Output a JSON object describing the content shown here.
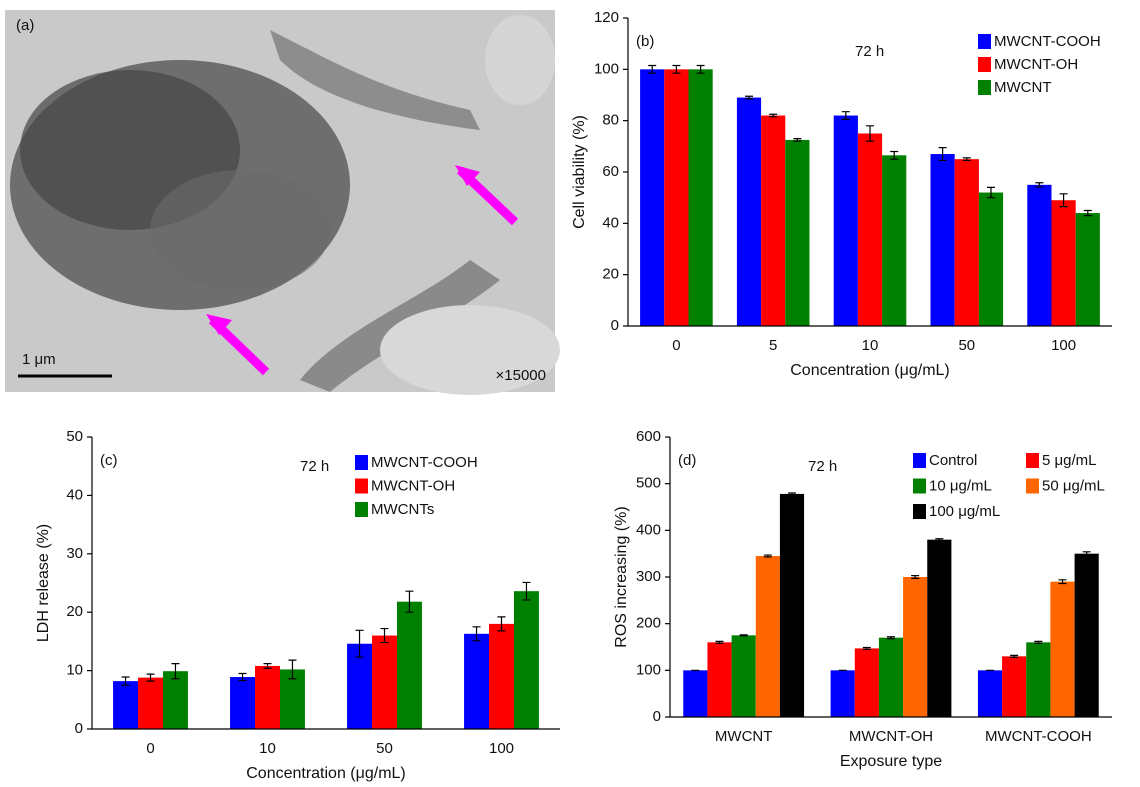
{
  "image": {
    "panel_label": "(a)",
    "scale_bar": "1 μm",
    "magnification": "×15000"
  },
  "chart_data": [
    {
      "type": "bar",
      "panel_label": "(b)",
      "annotation": "72 h",
      "x_label": "Concentration (μg/mL)",
      "y_label": "Cell viability (%)",
      "categories": [
        "0",
        "5",
        "10",
        "50",
        "100"
      ],
      "series": [
        {
          "name": "MWCNT-COOH",
          "color": "#0000ff",
          "values": [
            100,
            89,
            82,
            67,
            55
          ],
          "errors": [
            1.5,
            0.5,
            1.5,
            2.5,
            0.8
          ]
        },
        {
          "name": "MWCNT-OH",
          "color": "#ff0000",
          "values": [
            100,
            82,
            75,
            65,
            49
          ],
          "errors": [
            1.5,
            0.5,
            3,
            0.5,
            2.5
          ]
        },
        {
          "name": "MWCNT",
          "color": "#008000",
          "values": [
            100,
            72.5,
            66.5,
            52,
            44
          ],
          "errors": [
            1.5,
            0.5,
            1.5,
            2,
            1
          ]
        }
      ],
      "ylim": [
        0,
        120
      ],
      "yticks": [
        0,
        20,
        40,
        60,
        80,
        100,
        120
      ],
      "legend": "upper right"
    },
    {
      "type": "bar",
      "panel_label": "(c)",
      "annotation": "72 h",
      "x_label": "Concentration (μg/mL)",
      "y_label": "LDH release (%)",
      "categories": [
        "0",
        "10",
        "50",
        "100"
      ],
      "series": [
        {
          "name": "MWCNT-COOH",
          "color": "#0000ff",
          "values": [
            8.2,
            8.9,
            14.6,
            16.3
          ],
          "errors": [
            0.7,
            0.6,
            2.3,
            1.2
          ]
        },
        {
          "name": "MWCNT-OH",
          "color": "#ff0000",
          "values": [
            8.8,
            10.8,
            16,
            18
          ],
          "errors": [
            0.6,
            0.4,
            1.2,
            1.2
          ]
        },
        {
          "name": "MWCNTs",
          "color": "#008000",
          "values": [
            9.9,
            10.2,
            21.8,
            23.6
          ],
          "errors": [
            1.3,
            1.6,
            1.8,
            1.5
          ]
        }
      ],
      "ylim": [
        0,
        50
      ],
      "yticks": [
        0,
        10,
        20,
        30,
        40,
        50
      ],
      "legend": "upper right"
    },
    {
      "type": "bar",
      "panel_label": "(d)",
      "annotation": "72 h",
      "x_label": "Exposure type",
      "y_label": "ROS increasing (%)",
      "categories": [
        "MWCNT",
        "MWCNT-OH",
        "MWCNT-COOH"
      ],
      "series": [
        {
          "name": "Control",
          "color": "#0000ff",
          "values": [
            100,
            100,
            100
          ],
          "errors": [
            0,
            0,
            0
          ]
        },
        {
          "name": "5 μg/mL",
          "color": "#ff0000",
          "values": [
            160,
            147,
            130
          ],
          "errors": [
            2,
            2,
            2
          ]
        },
        {
          "name": "10 μg/mL",
          "color": "#008000",
          "values": [
            175,
            170,
            160
          ],
          "errors": [
            1,
            2,
            2
          ]
        },
        {
          "name": "50 μg/mL",
          "color": "#ff6600",
          "values": [
            345,
            300,
            290
          ],
          "errors": [
            2,
            3,
            4
          ]
        },
        {
          "name": "100 μg/mL",
          "color": "#000000",
          "values": [
            478,
            380,
            350
          ],
          "errors": [
            2,
            2,
            4
          ]
        }
      ],
      "ylim": [
        0,
        600
      ],
      "yticks": [
        0,
        100,
        200,
        300,
        400,
        500,
        600
      ],
      "legend": "upper right"
    }
  ]
}
